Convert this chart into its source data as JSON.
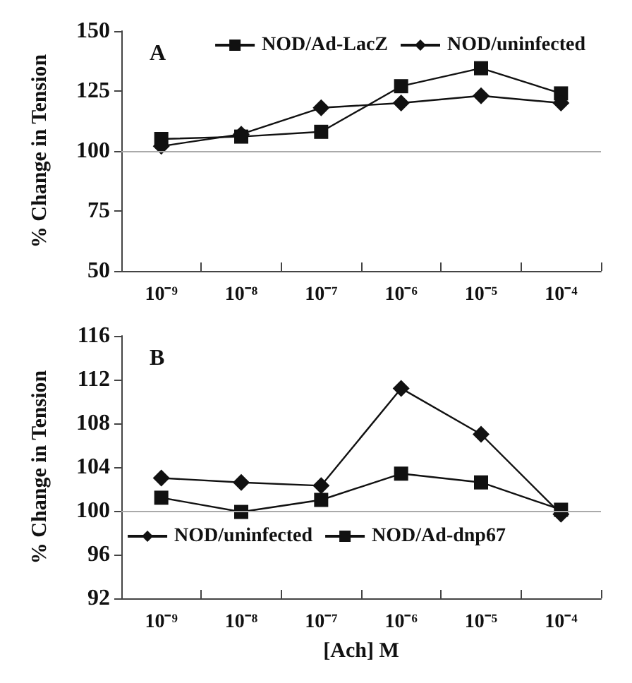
{
  "chart_data": [
    {
      "type": "line",
      "annotations": [
        "A"
      ],
      "ylabel": "% Change in Tension",
      "categories": [
        "10⁻⁹",
        "10⁻⁸",
        "10⁻⁷",
        "10⁻⁶",
        "10⁻⁵",
        "10⁻⁴"
      ],
      "ylim": [
        50,
        150
      ],
      "yticks": [
        50,
        75,
        100,
        125,
        150
      ],
      "grid": false,
      "legend": "top right",
      "ref_lines": [
        {
          "axis": "y",
          "value": 100,
          "color": "#aaaaaa"
        }
      ],
      "series": [
        {
          "name": "NOD/Ad-LacZ",
          "color": "#111111",
          "marker": "square",
          "values": [
            105,
            106,
            108,
            127,
            134.5,
            124
          ]
        },
        {
          "name": "NOD/uninfected",
          "color": "#111111",
          "marker": "diamond",
          "values": [
            102,
            107,
            118,
            120,
            123,
            120
          ]
        }
      ]
    },
    {
      "type": "line",
      "annotations": [
        "B"
      ],
      "ylabel": "% Change in Tension",
      "xlabel": "[Ach] M",
      "categories": [
        "10⁻⁹",
        "10⁻⁸",
        "10⁻⁷",
        "10⁻⁶",
        "10⁻⁵",
        "10⁻⁴"
      ],
      "ylim": [
        92,
        116
      ],
      "yticks": [
        92,
        96,
        100,
        104,
        108,
        112,
        116
      ],
      "grid": false,
      "legend": "bottom",
      "ref_lines": [
        {
          "axis": "y",
          "value": 100,
          "color": "#aaaaaa"
        }
      ],
      "series": [
        {
          "name": "NOD/uninfected",
          "color": "#111111",
          "marker": "diamond",
          "values": [
            103,
            102.6,
            102.3,
            111.2,
            107,
            99.7
          ]
        },
        {
          "name": "NOD/Ad-dnp67",
          "color": "#111111",
          "marker": "square",
          "values": [
            101.2,
            99.9,
            101,
            103.4,
            102.6,
            100.1
          ]
        }
      ]
    }
  ]
}
